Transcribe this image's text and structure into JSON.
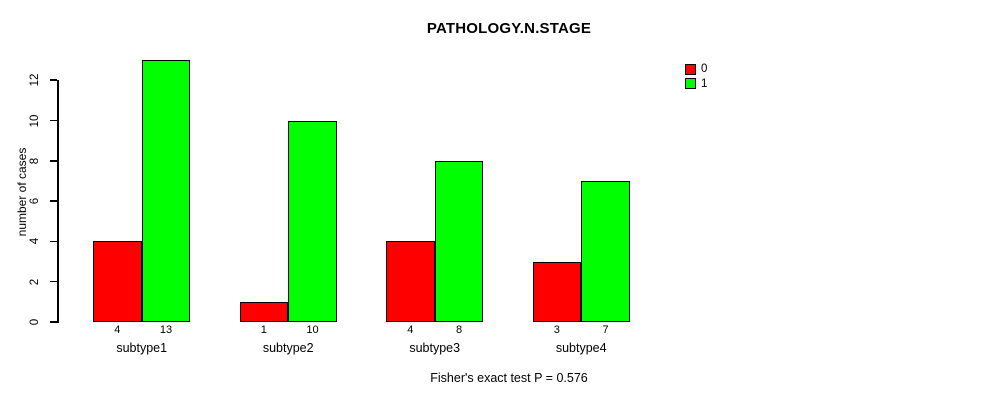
{
  "title": "PATHOLOGY.N.STAGE",
  "footer_note": "Fisher's exact test P = 0.576",
  "chart_data": {
    "type": "bar",
    "grouped": true,
    "title": "PATHOLOGY.N.STAGE",
    "xlabel": "",
    "ylabel": "number of cases",
    "categories": [
      "subtype1",
      "subtype2",
      "subtype3",
      "subtype4"
    ],
    "series": [
      {
        "name": "0",
        "color": "#FF0000",
        "values": [
          4,
          1,
          4,
          3
        ]
      },
      {
        "name": "1",
        "color": "#00FF00",
        "values": [
          13,
          10,
          8,
          7
        ]
      }
    ],
    "bar_value_labels": [
      [
        "4",
        "13"
      ],
      [
        "1",
        "10"
      ],
      [
        "4",
        "8"
      ],
      [
        "3",
        "7"
      ]
    ],
    "ylim": [
      0,
      13
    ],
    "yticks": [
      0,
      2,
      4,
      6,
      8,
      10,
      12
    ],
    "grid": false,
    "legend_position": "top-right",
    "legend_entries": [
      {
        "label": "0",
        "color": "#FF0000"
      },
      {
        "label": "1",
        "color": "#00FF00"
      }
    ],
    "annotation": "Fisher's exact test P = 0.576"
  }
}
